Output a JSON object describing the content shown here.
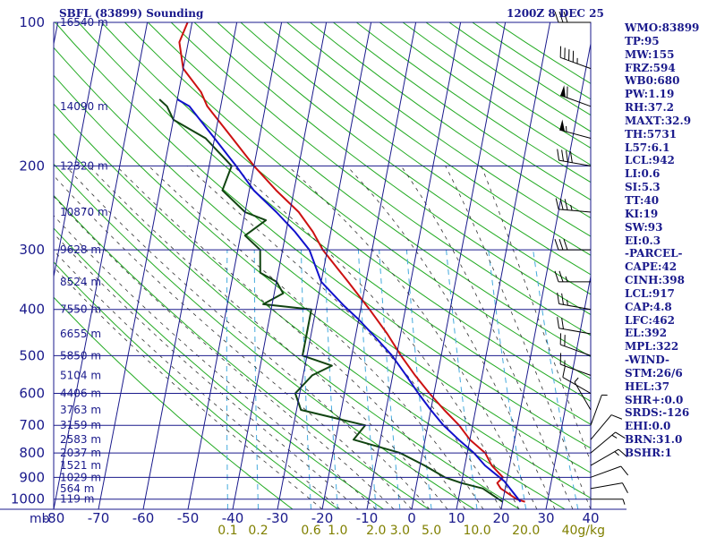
{
  "header": {
    "station": "SBFL (83899) Sounding",
    "time": "1200Z  8 DEC 25"
  },
  "indices": [
    "WMO:83899",
    "TP:95",
    "MW:155",
    "FRZ:594",
    "WB0:680",
    "PW:1.19",
    "RH:37.2",
    "MAXT:32.9",
    "TH:5731",
    "L57:6.1",
    "LCL:942",
    "LI:0.6",
    "SI:5.3",
    "TT:40",
    "KI:19",
    "SW:93",
    "EI:0.3",
    "-PARCEL-",
    "CAPE:42",
    "CINH:398",
    "LCL:917",
    "CAP:4.8",
    "LFC:462",
    "EL:392",
    "MPL:322",
    "-WIND-",
    "STM:26/6",
    "HEL:37",
    "SHR+:0.0",
    "SRDS:-126",
    "EHI:0.0",
    "BRN:31.0",
    "BSHR:1"
  ],
  "colors": {
    "grid": "#1a1a8c",
    "dry_adiabat": "#22aa22",
    "temperature": "#cc1111",
    "dewpoint": "#114411",
    "parcel": "#1111cc",
    "mixing_ratio": "#44aadd",
    "moist_adiabat": "#333333",
    "mixing_label": "#808000"
  },
  "chart_data": {
    "type": "line",
    "title": "SBFL (83899) Sounding",
    "x_axis": {
      "range": [
        -80,
        40
      ],
      "ticks": [
        -80,
        -70,
        -60,
        -50,
        -40,
        -30,
        -20,
        -10,
        0,
        10,
        20,
        30,
        40
      ],
      "tick_labels": [
        "-80",
        "-70",
        "-60",
        "-50",
        "-40",
        "-30",
        "-20",
        "-10",
        "0",
        "10",
        "20",
        "30",
        "40"
      ]
    },
    "y_axis": {
      "scale": "log",
      "range": [
        1050,
        100
      ],
      "unit_label": "mb",
      "ticks": [
        100,
        200,
        300,
        400,
        500,
        600,
        700,
        800,
        900,
        1000
      ],
      "tick_labels": [
        "100",
        "200",
        "300",
        "400",
        "500",
        "600",
        "700",
        "800",
        "900",
        "1000"
      ]
    },
    "height_labels": [
      {
        "p": 100,
        "label": "16540 m"
      },
      {
        "p": 150,
        "label": "14090 m"
      },
      {
        "p": 200,
        "label": "12320 m"
      },
      {
        "p": 250,
        "label": "10870 m"
      },
      {
        "p": 300,
        "label": "9628 m"
      },
      {
        "p": 350,
        "label": "8524 m"
      },
      {
        "p": 400,
        "label": "7550 m"
      },
      {
        "p": 450,
        "label": "6655 m"
      },
      {
        "p": 500,
        "label": "5850 m"
      },
      {
        "p": 550,
        "label": "5104 m"
      },
      {
        "p": 600,
        "label": "4406 m"
      },
      {
        "p": 650,
        "label": "3763 m"
      },
      {
        "p": 700,
        "label": "3159 m"
      },
      {
        "p": 750,
        "label": "2583 m"
      },
      {
        "p": 800,
        "label": "2037 m"
      },
      {
        "p": 850,
        "label": "1521 m"
      },
      {
        "p": 900,
        "label": "1029 m"
      },
      {
        "p": 950,
        "label": "564 m"
      },
      {
        "p": 1000,
        "label": "119 m"
      }
    ],
    "mixing_ratio_labels": [
      "0.1",
      "0.2",
      "0.6",
      "1.0",
      "2.0",
      "3.0",
      "5.0",
      "10.0",
      "20.0",
      "40g/kg"
    ],
    "series": [
      {
        "key": "temperature",
        "points": [
          [
            1013,
            25
          ],
          [
            1000,
            23
          ],
          [
            950,
            19
          ],
          [
            925,
            18
          ],
          [
            900,
            19
          ],
          [
            850,
            16
          ],
          [
            800,
            14
          ],
          [
            750,
            10
          ],
          [
            700,
            7
          ],
          [
            650,
            3
          ],
          [
            600,
            -1
          ],
          [
            550,
            -5
          ],
          [
            500,
            -9
          ],
          [
            450,
            -13
          ],
          [
            400,
            -18
          ],
          [
            350,
            -24
          ],
          [
            300,
            -31
          ],
          [
            275,
            -34
          ],
          [
            250,
            -38
          ],
          [
            225,
            -44
          ],
          [
            200,
            -50
          ],
          [
            175,
            -56
          ],
          [
            150,
            -63
          ],
          [
            140,
            -65
          ],
          [
            125,
            -70
          ],
          [
            110,
            -72
          ],
          [
            100,
            -71
          ]
        ]
      },
      {
        "key": "dewpoint",
        "points": [
          [
            1013,
            20
          ],
          [
            1000,
            19
          ],
          [
            950,
            15
          ],
          [
            925,
            10
          ],
          [
            900,
            6
          ],
          [
            850,
            1
          ],
          [
            800,
            -5
          ],
          [
            750,
            -16
          ],
          [
            700,
            -14
          ],
          [
            650,
            -29
          ],
          [
            600,
            -31
          ],
          [
            550,
            -28
          ],
          [
            525,
            -24
          ],
          [
            500,
            -31
          ],
          [
            450,
            -31
          ],
          [
            400,
            -31
          ],
          [
            390,
            -42
          ],
          [
            370,
            -38
          ],
          [
            350,
            -40
          ],
          [
            335,
            -44
          ],
          [
            300,
            -45
          ],
          [
            280,
            -49
          ],
          [
            260,
            -45
          ],
          [
            250,
            -50
          ],
          [
            225,
            -56
          ],
          [
            200,
            -55
          ],
          [
            175,
            -62
          ],
          [
            160,
            -70
          ],
          [
            150,
            -72
          ],
          [
            145,
            -74
          ]
        ]
      },
      {
        "key": "parcel",
        "points": [
          [
            1013,
            24
          ],
          [
            917,
            19.5
          ],
          [
            850,
            14.5
          ],
          [
            800,
            11.5
          ],
          [
            750,
            7.5
          ],
          [
            700,
            3.5
          ],
          [
            650,
            0
          ],
          [
            600,
            -3.5
          ],
          [
            550,
            -7
          ],
          [
            500,
            -11
          ],
          [
            462,
            -15
          ],
          [
            420,
            -20
          ],
          [
            392,
            -24
          ],
          [
            350,
            -30
          ],
          [
            300,
            -34
          ],
          [
            275,
            -38
          ],
          [
            250,
            -43
          ],
          [
            225,
            -49
          ],
          [
            200,
            -54
          ],
          [
            175,
            -60
          ],
          [
            150,
            -67
          ],
          [
            145,
            -70
          ]
        ]
      }
    ],
    "wind_profile": [
      {
        "p": 1000,
        "dir": 90,
        "spd": 5
      },
      {
        "p": 950,
        "dir": 80,
        "spd": 10
      },
      {
        "p": 900,
        "dir": 70,
        "spd": 10
      },
      {
        "p": 850,
        "dir": 60,
        "spd": 15
      },
      {
        "p": 800,
        "dir": 50,
        "spd": 15
      },
      {
        "p": 750,
        "dir": 40,
        "spd": 10
      },
      {
        "p": 700,
        "dir": 20,
        "spd": 5
      },
      {
        "p": 650,
        "dir": 330,
        "spd": 5
      },
      {
        "p": 600,
        "dir": 300,
        "spd": 10
      },
      {
        "p": 550,
        "dir": 290,
        "spd": 15
      },
      {
        "p": 500,
        "dir": 290,
        "spd": 20
      },
      {
        "p": 450,
        "dir": 280,
        "spd": 20
      },
      {
        "p": 400,
        "dir": 280,
        "spd": 25
      },
      {
        "p": 350,
        "dir": 270,
        "spd": 25
      },
      {
        "p": 300,
        "dir": 270,
        "spd": 30
      },
      {
        "p": 250,
        "dir": 275,
        "spd": 35
      },
      {
        "p": 200,
        "dir": 280,
        "spd": 40
      },
      {
        "p": 175,
        "dir": 285,
        "spd": 55
      },
      {
        "p": 150,
        "dir": 290,
        "spd": 60
      },
      {
        "p": 125,
        "dir": 290,
        "spd": 45
      },
      {
        "p": 100,
        "dir": 270,
        "spd": 30
      }
    ]
  }
}
